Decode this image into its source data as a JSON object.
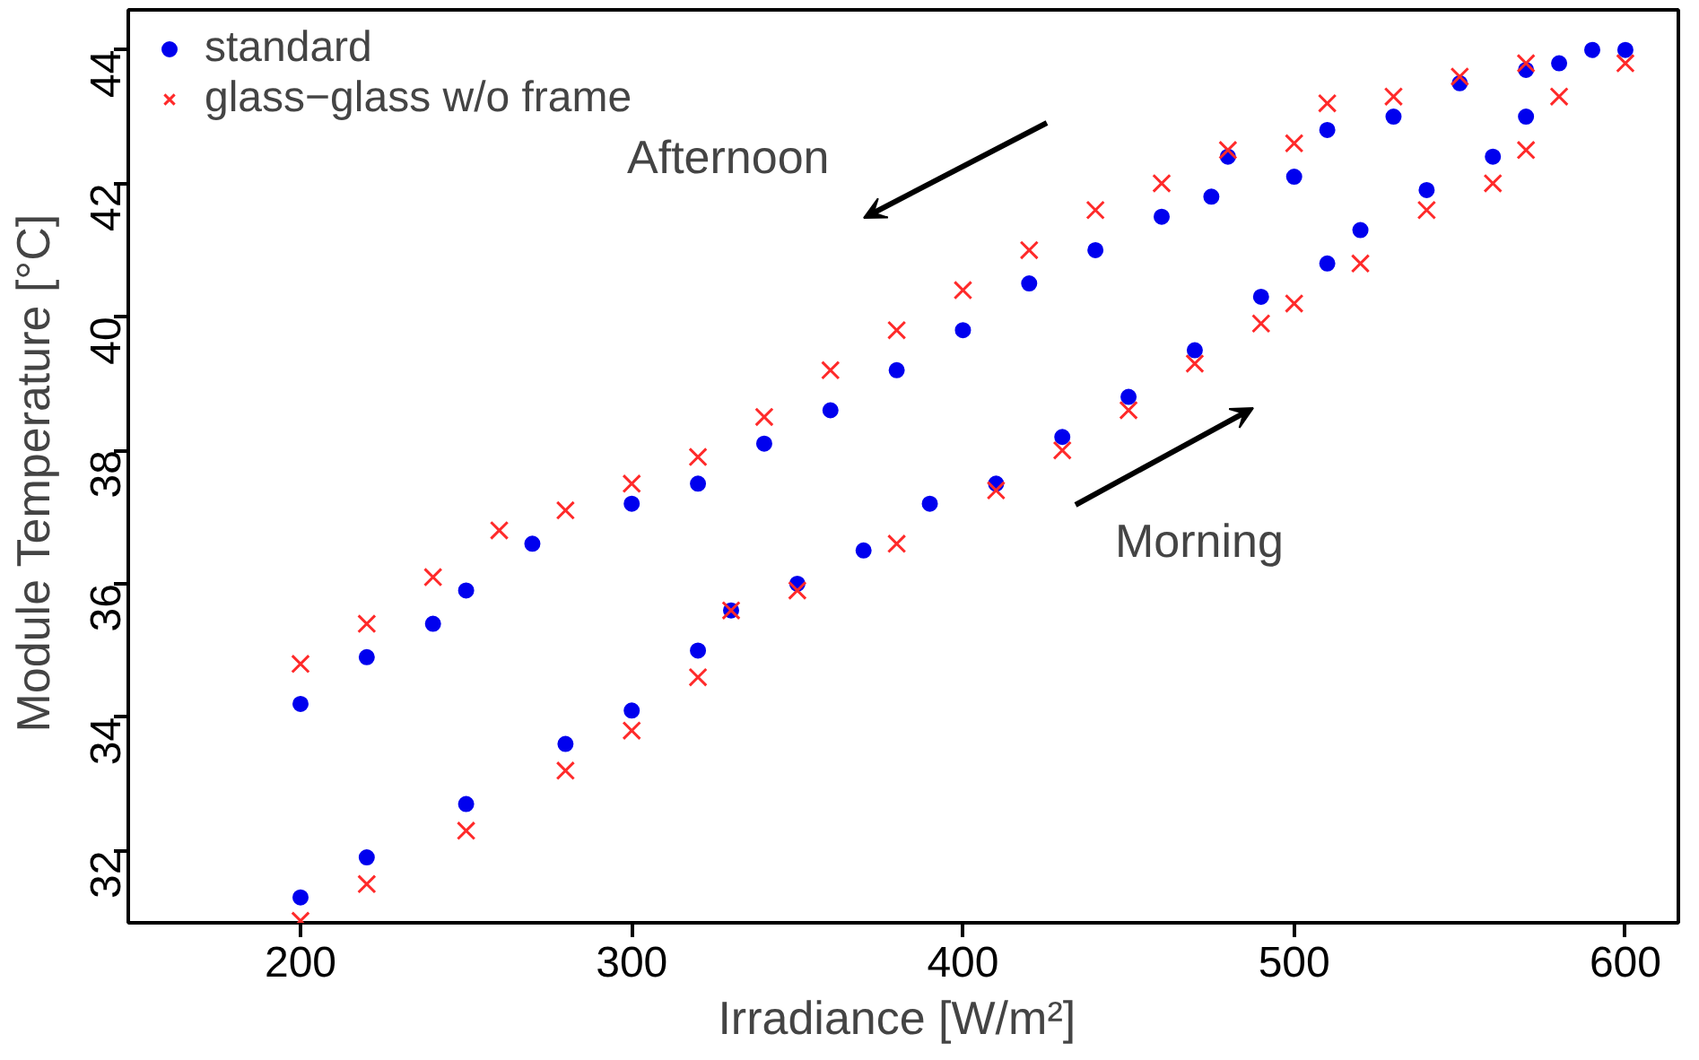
{
  "chart_data": {
    "type": "scatter",
    "xlabel": "Irradiance  [W/m²]",
    "ylabel": "Module Temperature  [°C]",
    "xlim": [
      148,
      616
    ],
    "ylim": [
      30.92,
      44.6
    ],
    "xticks": [
      200,
      300,
      400,
      500,
      600
    ],
    "yticks": [
      32,
      34,
      36,
      38,
      40,
      42,
      44
    ],
    "grid": false,
    "legend": "top left",
    "annotations": [
      "Afternoon",
      "Morning"
    ],
    "series": [
      {
        "name": "standard",
        "color": "#0000ee",
        "marker": "circle",
        "x": [
          200,
          220,
          250,
          280,
          300,
          320,
          330,
          350,
          370,
          390,
          410,
          430,
          450,
          470,
          490,
          510,
          520,
          540,
          560,
          570,
          580,
          590,
          600,
          200,
          220,
          240,
          250,
          270,
          300,
          320,
          340,
          360,
          380,
          400,
          420,
          440,
          460,
          475,
          480,
          500,
          510,
          530,
          550,
          570
        ],
        "values": [
          31.3,
          31.9,
          32.7,
          33.6,
          34.1,
          35.0,
          35.6,
          36.0,
          36.5,
          37.2,
          37.5,
          38.2,
          38.8,
          39.5,
          40.3,
          40.8,
          41.3,
          41.9,
          42.4,
          43.0,
          43.8,
          44.0,
          44.0,
          34.2,
          34.9,
          35.4,
          35.9,
          36.6,
          37.2,
          37.5,
          38.1,
          38.6,
          39.2,
          39.8,
          40.5,
          41.0,
          41.5,
          41.8,
          42.4,
          42.1,
          42.8,
          43.0,
          43.5,
          43.7
        ]
      },
      {
        "name": "glass−glass w/o frame",
        "color": "#ff2a2a",
        "marker": "cross",
        "x": [
          200,
          220,
          250,
          280,
          300,
          320,
          330,
          350,
          380,
          410,
          430,
          450,
          470,
          490,
          500,
          520,
          540,
          560,
          570,
          580,
          600,
          200,
          220,
          240,
          260,
          280,
          300,
          320,
          340,
          360,
          380,
          400,
          420,
          440,
          460,
          480,
          500,
          510,
          530,
          550,
          570
        ],
        "values": [
          30.95,
          31.5,
          32.3,
          33.2,
          33.8,
          34.6,
          35.6,
          35.9,
          36.6,
          37.4,
          38.0,
          38.6,
          39.3,
          39.9,
          40.2,
          40.8,
          41.6,
          42.0,
          42.5,
          43.3,
          43.8,
          34.8,
          35.4,
          36.1,
          36.8,
          37.1,
          37.5,
          37.9,
          38.5,
          39.2,
          39.8,
          40.4,
          41.0,
          41.6,
          42.0,
          42.5,
          42.6,
          43.2,
          43.3,
          43.6,
          43.8
        ]
      }
    ]
  }
}
